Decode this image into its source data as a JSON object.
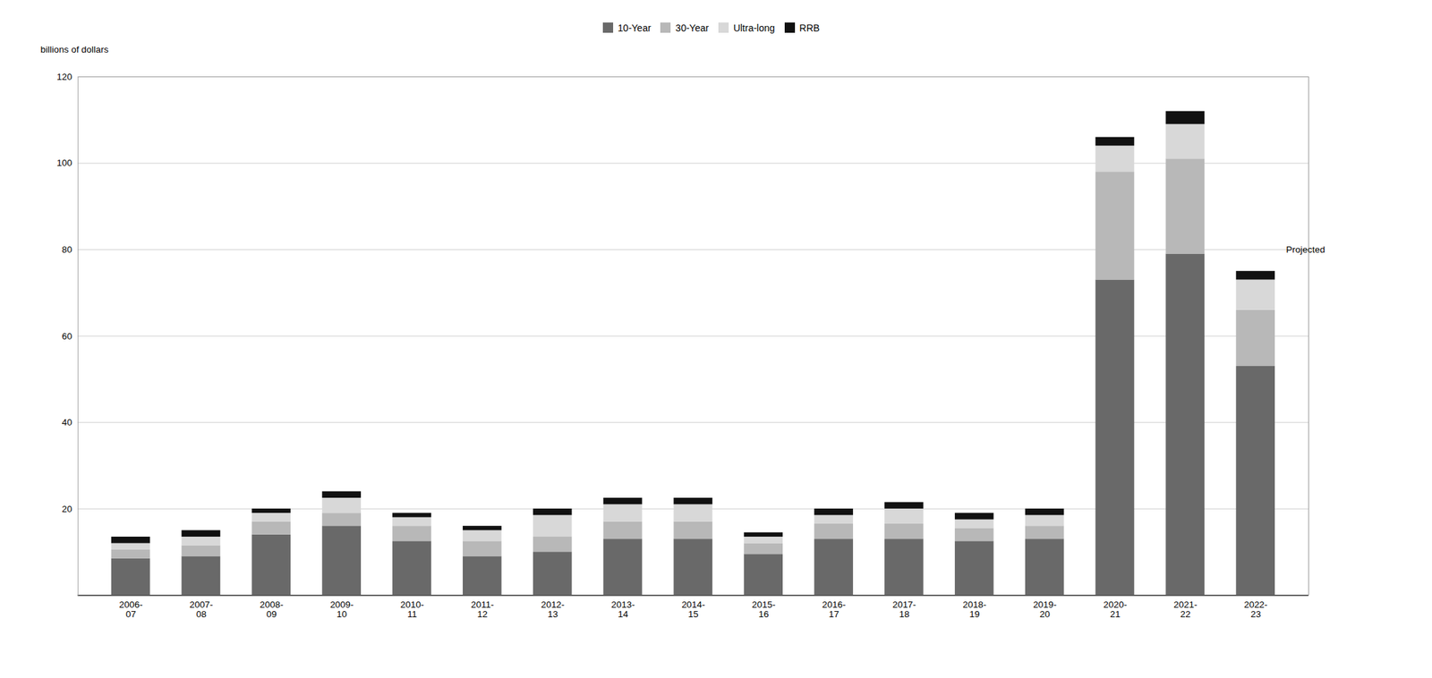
{
  "chart_data": {
    "type": "bar",
    "stacked": true,
    "ylabel": "billions of dollars",
    "categories": [
      "2006-\n07",
      "2007-\n08",
      "2008-\n09",
      "2009-\n10",
      "2010-\n11",
      "2011-\n12",
      "2012-\n13",
      "2013-\n14",
      "2014-\n15",
      "2015-\n16",
      "2016-\n17",
      "2017-\n18",
      "2018-\n19",
      "2019-\n20",
      "2020-\n21",
      "2021-\n22",
      "2022-\n23"
    ],
    "series": [
      {
        "name": "10-Year",
        "color": "#696969",
        "values": [
          8.5,
          9.0,
          14.0,
          16.0,
          12.5,
          9.0,
          10.0,
          13.0,
          13.0,
          9.5,
          13.0,
          13.0,
          12.5,
          13.0,
          73.0,
          79.0,
          53.0
        ]
      },
      {
        "name": "30-Year",
        "color": "#b8b8b8",
        "values": [
          2.0,
          2.5,
          3.0,
          3.0,
          3.5,
          3.5,
          3.5,
          4.0,
          4.0,
          2.5,
          3.5,
          3.5,
          3.0,
          3.0,
          25.0,
          22.0,
          13.0
        ]
      },
      {
        "name": "Ultra-long",
        "color": "#d8d8d8",
        "values": [
          1.5,
          2.0,
          2.0,
          3.5,
          2.0,
          2.5,
          5.0,
          4.0,
          4.0,
          1.5,
          2.0,
          3.5,
          2.0,
          2.5,
          6.0,
          8.0,
          7.0
        ]
      },
      {
        "name": "RRB",
        "color": "#111111",
        "values": [
          1.5,
          1.5,
          1.0,
          1.5,
          1.0,
          1.0,
          1.5,
          1.5,
          1.5,
          1.0,
          1.5,
          1.5,
          1.5,
          1.5,
          2.0,
          3.0,
          2.0
        ]
      }
    ],
    "annotations": [
      {
        "text": "Projected",
        "category": "2022-\n23",
        "y": 80
      }
    ],
    "ylim": [
      0,
      120
    ],
    "yticks": [
      20,
      40,
      60,
      80,
      100,
      120
    ],
    "grid": true,
    "legend": "upper center"
  }
}
